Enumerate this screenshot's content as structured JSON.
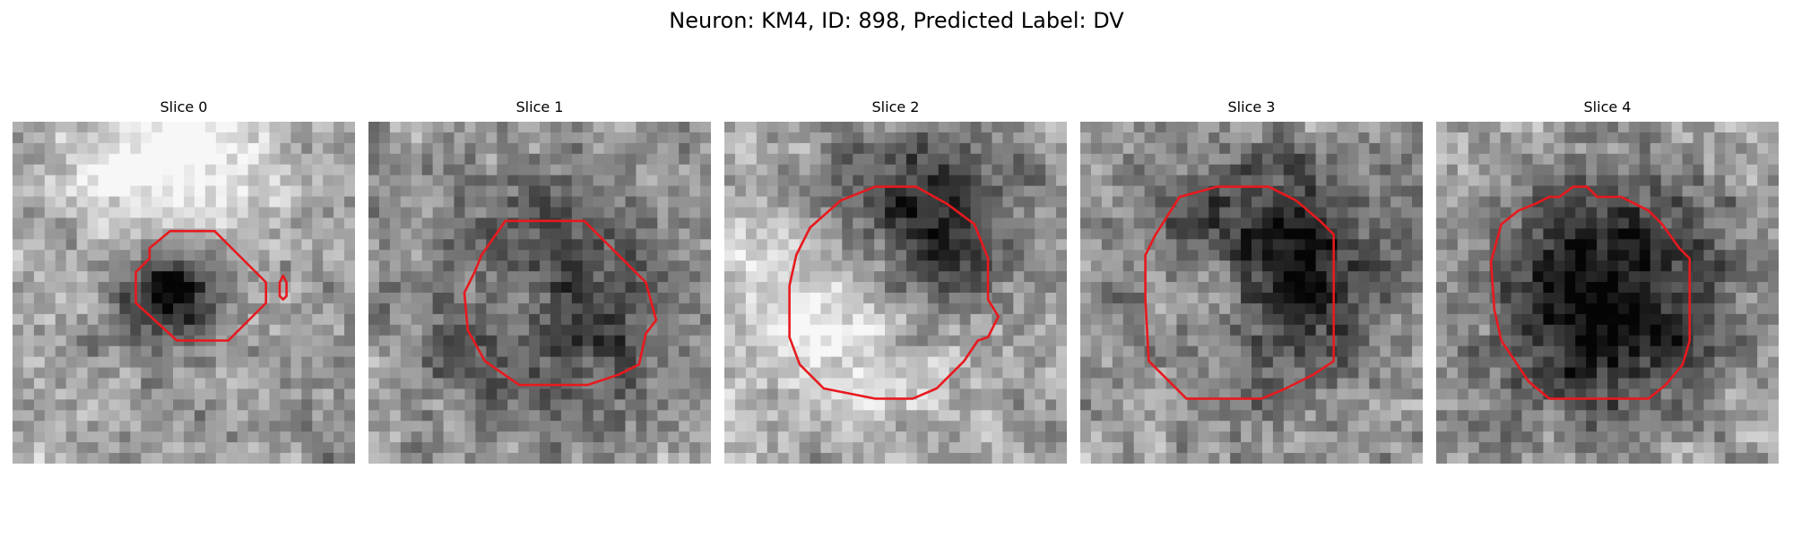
{
  "figure": {
    "title": "Neuron: KM4, ID: 898, Predicted Label: DV"
  },
  "colors": {
    "contour": "#e8191e"
  },
  "panels": [
    {
      "title": "Slice 0",
      "image": "grayscale-microscopy-tile",
      "dark_center": [
        0.46,
        0.5
      ],
      "dark_radius": 0.14,
      "bright_center": [
        0.45,
        0.12
      ],
      "bright_radius": 0.2,
      "contours": [
        [
          [
            0.46,
            0.32
          ],
          [
            0.59,
            0.32
          ],
          [
            0.74,
            0.47
          ],
          [
            0.74,
            0.53
          ],
          [
            0.63,
            0.64
          ],
          [
            0.48,
            0.64
          ],
          [
            0.36,
            0.53
          ],
          [
            0.36,
            0.44
          ],
          [
            0.4,
            0.4
          ],
          [
            0.4,
            0.37
          ]
        ],
        [
          [
            0.79,
            0.45
          ],
          [
            0.8,
            0.47
          ],
          [
            0.8,
            0.51
          ],
          [
            0.79,
            0.52
          ],
          [
            0.78,
            0.51
          ],
          [
            0.78,
            0.47
          ]
        ]
      ]
    },
    {
      "title": "Slice 1",
      "image": "grayscale-microscopy-tile",
      "dark_center": [
        0.5,
        0.52
      ],
      "dark_radius": 0.3,
      "bright_center": [
        0.45,
        0.52
      ],
      "bright_radius": 0.14,
      "contours": [
        [
          [
            0.4,
            0.29
          ],
          [
            0.63,
            0.29
          ],
          [
            0.75,
            0.41
          ],
          [
            0.81,
            0.47
          ],
          [
            0.84,
            0.58
          ],
          [
            0.81,
            0.62
          ],
          [
            0.79,
            0.71
          ],
          [
            0.73,
            0.74
          ],
          [
            0.64,
            0.77
          ],
          [
            0.44,
            0.77
          ],
          [
            0.34,
            0.7
          ],
          [
            0.29,
            0.61
          ],
          [
            0.28,
            0.5
          ],
          [
            0.31,
            0.44
          ],
          [
            0.33,
            0.39
          ]
        ]
      ]
    },
    {
      "title": "Slice 2",
      "image": "grayscale-microscopy-tile",
      "dark_center": [
        0.55,
        0.33
      ],
      "dark_radius": 0.25,
      "bright_center": [
        0.35,
        0.55
      ],
      "bright_radius": 0.22,
      "contours": [
        [
          [
            0.34,
            0.23
          ],
          [
            0.44,
            0.19
          ],
          [
            0.56,
            0.19
          ],
          [
            0.65,
            0.24
          ],
          [
            0.73,
            0.3
          ],
          [
            0.77,
            0.4
          ],
          [
            0.77,
            0.52
          ],
          [
            0.8,
            0.57
          ],
          [
            0.77,
            0.63
          ],
          [
            0.74,
            0.64
          ],
          [
            0.7,
            0.7
          ],
          [
            0.62,
            0.78
          ],
          [
            0.55,
            0.81
          ],
          [
            0.44,
            0.81
          ],
          [
            0.29,
            0.78
          ],
          [
            0.22,
            0.71
          ],
          [
            0.19,
            0.63
          ],
          [
            0.19,
            0.48
          ],
          [
            0.21,
            0.39
          ],
          [
            0.25,
            0.31
          ]
        ]
      ]
    },
    {
      "title": "Slice 3",
      "image": "grayscale-microscopy-tile",
      "dark_center": [
        0.55,
        0.43
      ],
      "dark_radius": 0.3,
      "bright_center": [
        0.4,
        0.52
      ],
      "bright_radius": 0.12,
      "contours": [
        [
          [
            0.29,
            0.22
          ],
          [
            0.4,
            0.19
          ],
          [
            0.55,
            0.19
          ],
          [
            0.63,
            0.23
          ],
          [
            0.7,
            0.29
          ],
          [
            0.74,
            0.33
          ],
          [
            0.74,
            0.48
          ],
          [
            0.74,
            0.7
          ],
          [
            0.68,
            0.74
          ],
          [
            0.6,
            0.78
          ],
          [
            0.53,
            0.81
          ],
          [
            0.31,
            0.81
          ],
          [
            0.24,
            0.74
          ],
          [
            0.2,
            0.7
          ],
          [
            0.19,
            0.52
          ],
          [
            0.19,
            0.39
          ],
          [
            0.22,
            0.33
          ]
        ]
      ]
    },
    {
      "title": "Slice 4",
      "image": "grayscale-microscopy-tile",
      "dark_center": [
        0.5,
        0.52
      ],
      "dark_radius": 0.3,
      "bright_center": [
        0.5,
        0.52
      ],
      "bright_radius": 0.0,
      "contours": [
        [
          [
            0.33,
            0.22
          ],
          [
            0.36,
            0.22
          ],
          [
            0.4,
            0.19
          ],
          [
            0.44,
            0.19
          ],
          [
            0.47,
            0.22
          ],
          [
            0.54,
            0.22
          ],
          [
            0.58,
            0.24
          ],
          [
            0.62,
            0.26
          ],
          [
            0.66,
            0.3
          ],
          [
            0.71,
            0.37
          ],
          [
            0.74,
            0.4
          ],
          [
            0.74,
            0.64
          ],
          [
            0.72,
            0.71
          ],
          [
            0.67,
            0.77
          ],
          [
            0.62,
            0.81
          ],
          [
            0.33,
            0.81
          ],
          [
            0.27,
            0.76
          ],
          [
            0.23,
            0.7
          ],
          [
            0.19,
            0.64
          ],
          [
            0.17,
            0.55
          ],
          [
            0.16,
            0.41
          ],
          [
            0.19,
            0.3
          ],
          [
            0.24,
            0.26
          ],
          [
            0.29,
            0.24
          ]
        ]
      ]
    }
  ]
}
